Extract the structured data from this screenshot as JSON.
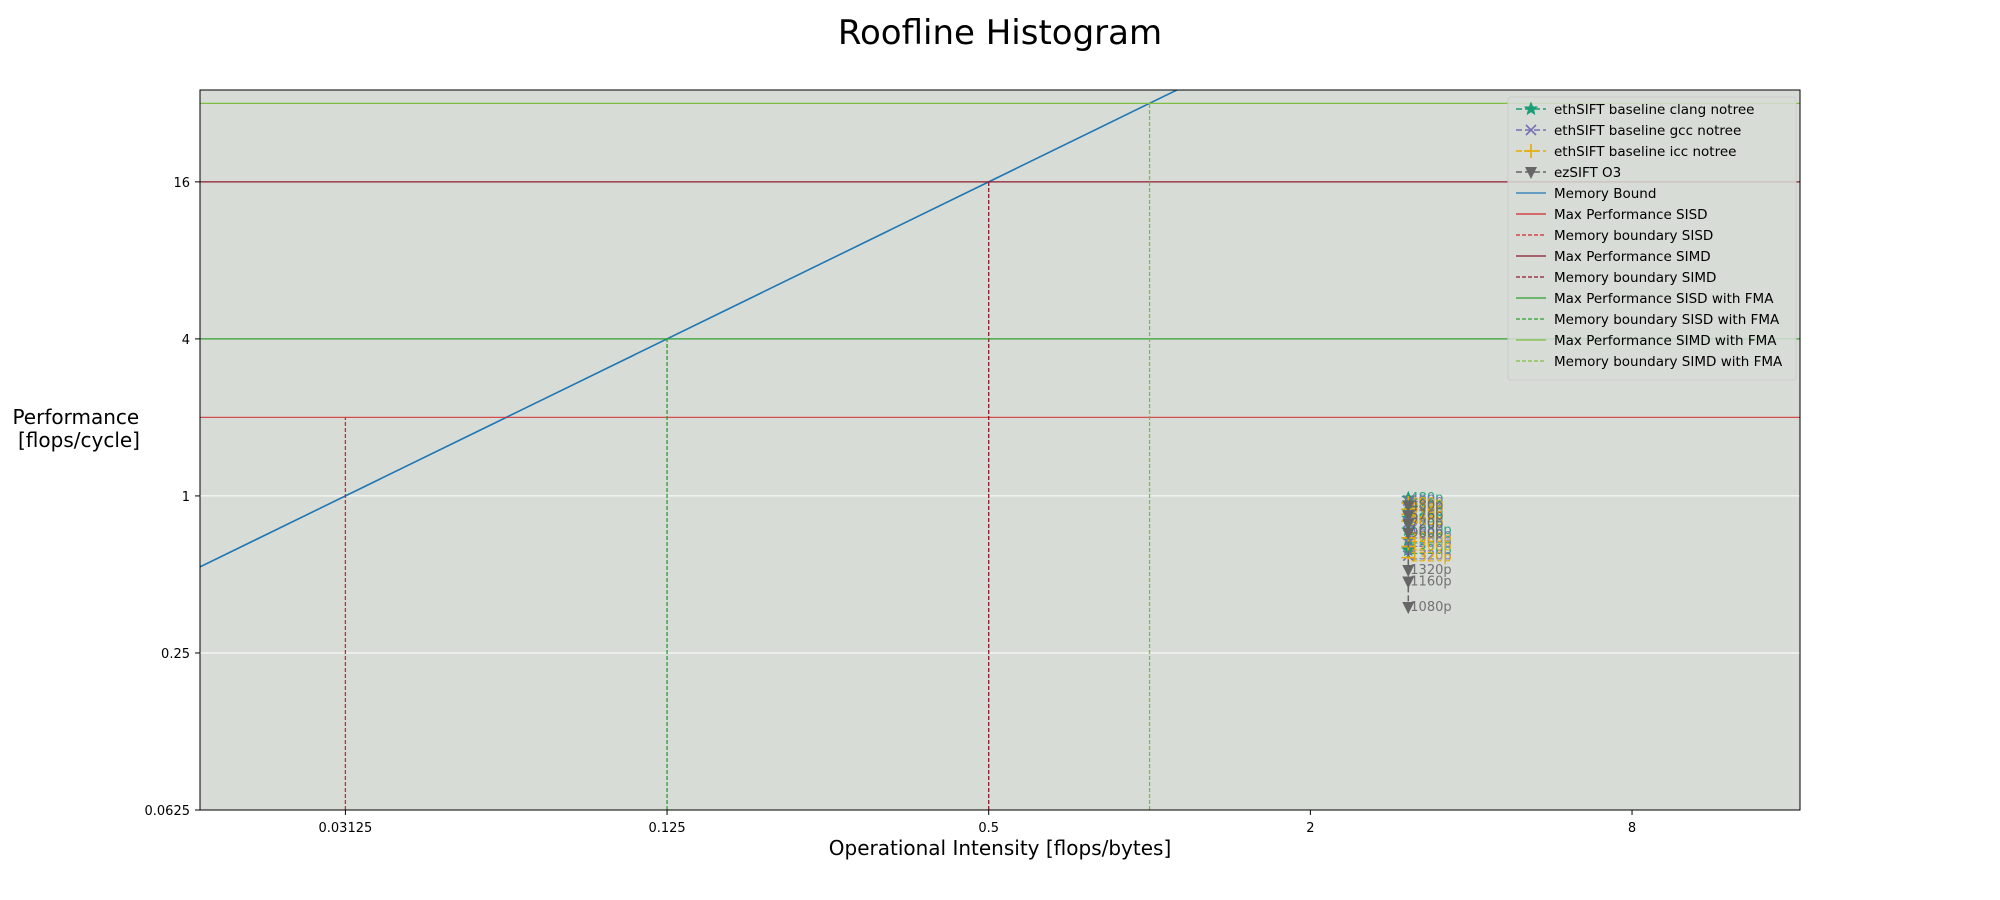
{
  "chart_data": {
    "type": "line",
    "title": "Roofline Histogram",
    "xlabel": "Operational Intensity [flops/bytes]",
    "ylabel": [
      "Performance",
      "[flops/cycle]"
    ],
    "x_scale": "log2",
    "y_scale": "log2",
    "xlim": [
      0.0167,
      16.5
    ],
    "ylim": [
      0.0625,
      36
    ],
    "x_ticks": [
      {
        "value": 0.03125,
        "label": "0.03125"
      },
      {
        "value": 0.125,
        "label": "0.125"
      },
      {
        "value": 0.5,
        "label": "0.5"
      },
      {
        "value": 2,
        "label": "2"
      },
      {
        "value": 8,
        "label": "8"
      }
    ],
    "y_ticks": [
      {
        "value": 0.0625,
        "label": "0.0625"
      },
      {
        "value": 0.25,
        "label": "0.25"
      },
      {
        "value": 1,
        "label": "1"
      },
      {
        "value": 4,
        "label": "4"
      },
      {
        "value": 16,
        "label": "16"
      }
    ],
    "grid": "horizontal",
    "background": "#d7dcd7",
    "legend_position": "top-right",
    "roofs": [
      {
        "name": "Memory Bound",
        "kind": "memory",
        "color": "#1f77b4",
        "bandwidth": 32
      },
      {
        "name": "Max Performance SISD",
        "kind": "horizontal",
        "color": "#d62728",
        "value": 2,
        "alpha": 0.8
      },
      {
        "name": "Memory boundary SISD",
        "kind": "vertical",
        "color": "#d62728",
        "value": 0.03125,
        "top": 2
      },
      {
        "name": "Max Performance SIMD",
        "kind": "horizontal",
        "color": "#8c1a2b",
        "value": 16
      },
      {
        "name": "Memory boundary SIMD",
        "kind": "vertical",
        "color": "#8c1a2b",
        "value": 0.5,
        "top": 16
      },
      {
        "name": "Max Performance SISD with FMA",
        "kind": "horizontal",
        "color": "#2ca02c",
        "value": 4
      },
      {
        "name": "Memory boundary SISD with FMA",
        "kind": "vertical",
        "color": "#2ca02c",
        "value": 0.125,
        "top": 4
      },
      {
        "name": "Max Performance SIMD with FMA",
        "kind": "horizontal",
        "color": "#7fbf3f",
        "value": 32
      },
      {
        "name": "Memory boundary SIMD with FMA",
        "kind": "vertical",
        "color": "#7fbf3f",
        "value": 1,
        "top": 32
      }
    ],
    "series": [
      {
        "name": "ethSIFT baseline clang notree",
        "color": "#1b9e77",
        "marker": "star",
        "points": [
          {
            "x": 3.05,
            "y": 0.98,
            "label": "480p"
          },
          {
            "x": 3.05,
            "y": 0.93,
            "label": "576p"
          },
          {
            "x": 3.05,
            "y": 0.87,
            "label": "720p"
          },
          {
            "x": 3.05,
            "y": 0.82,
            "label": "960p"
          },
          {
            "x": 3.05,
            "y": 0.74,
            "label": "1080p"
          },
          {
            "x": 3.05,
            "y": 0.68,
            "label": "1200p"
          },
          {
            "x": 3.05,
            "y": 0.62,
            "label": "1320p"
          }
        ]
      },
      {
        "name": "ethSIFT baseline gcc notree",
        "color": "#7570b3",
        "marker": "x",
        "points": [
          {
            "x": 3.05,
            "y": 0.96,
            "label": "480p"
          },
          {
            "x": 3.05,
            "y": 0.9,
            "label": "576p"
          },
          {
            "x": 3.05,
            "y": 0.84,
            "label": "720p"
          },
          {
            "x": 3.05,
            "y": 0.79,
            "label": "960p"
          },
          {
            "x": 3.05,
            "y": 0.71,
            "label": "1080p"
          },
          {
            "x": 3.05,
            "y": 0.66,
            "label": "1200p"
          },
          {
            "x": 3.05,
            "y": 0.59,
            "label": "1320p"
          }
        ]
      },
      {
        "name": "ethSIFT baseline icc notree",
        "color": "#e6ab02",
        "marker": "plus",
        "points": [
          {
            "x": 3.05,
            "y": 0.94,
            "label": "480p"
          },
          {
            "x": 3.05,
            "y": 0.89,
            "label": "576p"
          },
          {
            "x": 3.05,
            "y": 0.85,
            "label": "720p"
          },
          {
            "x": 3.05,
            "y": 0.8,
            "label": "960p"
          },
          {
            "x": 3.05,
            "y": 0.69,
            "label": "1080p"
          },
          {
            "x": 3.05,
            "y": 0.64,
            "label": "1200p"
          },
          {
            "x": 3.05,
            "y": 0.58,
            "label": "1320p"
          }
        ]
      },
      {
        "name": "ezSIFT O3",
        "color": "#666666",
        "marker": "triangle-down",
        "points": [
          {
            "x": 3.05,
            "y": 0.92,
            "label": "480p"
          },
          {
            "x": 3.05,
            "y": 0.84,
            "label": "576p"
          },
          {
            "x": 3.05,
            "y": 0.78,
            "label": "720p"
          },
          {
            "x": 3.05,
            "y": 0.72,
            "label": "960p"
          },
          {
            "x": 3.05,
            "y": 0.52,
            "label": "1320p"
          },
          {
            "x": 3.05,
            "y": 0.47,
            "label": "1160p"
          },
          {
            "x": 3.05,
            "y": 0.375,
            "label": "1080p"
          }
        ]
      }
    ]
  }
}
